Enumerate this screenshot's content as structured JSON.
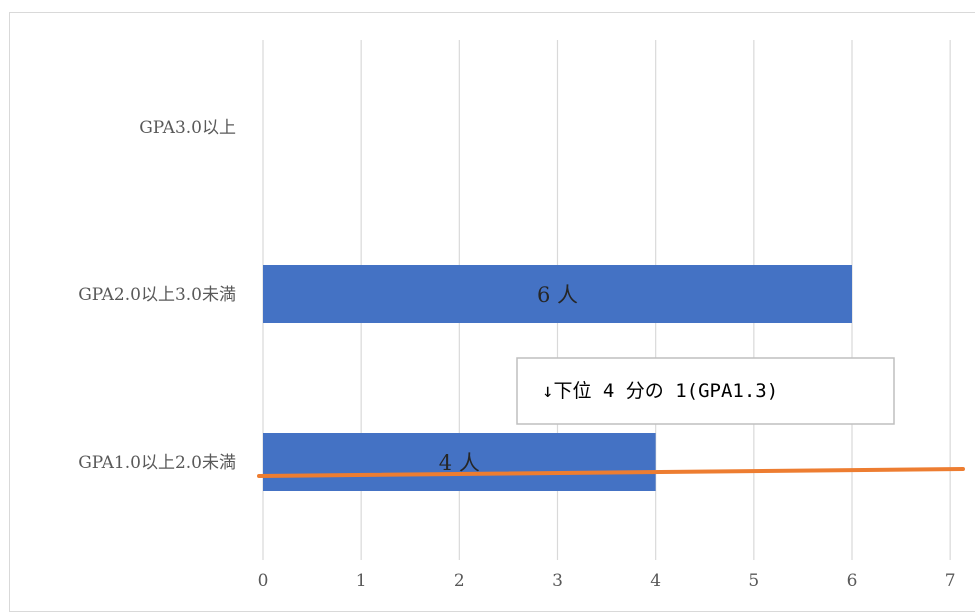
{
  "chart_data": {
    "type": "bar",
    "orientation": "horizontal",
    "categories": [
      "GPA3.0以上",
      "GPA2.0以上3.0未満",
      "GPA1.0以上2.0未満"
    ],
    "values": [
      null,
      6,
      4
    ],
    "data_labels": [
      "",
      "6 人",
      "4 人"
    ],
    "xlim": [
      0,
      7
    ],
    "x_ticks": [
      "0",
      "1",
      "2",
      "3",
      "4",
      "5",
      "6",
      "7"
    ],
    "grid": "vertical",
    "bar_color": "#4472c4",
    "reference_line": {
      "color": "#ed7d31",
      "description_text": "↓下位 4 分の 1(GPA1.3)"
    },
    "title": "",
    "xlabel": "",
    "ylabel": ""
  }
}
